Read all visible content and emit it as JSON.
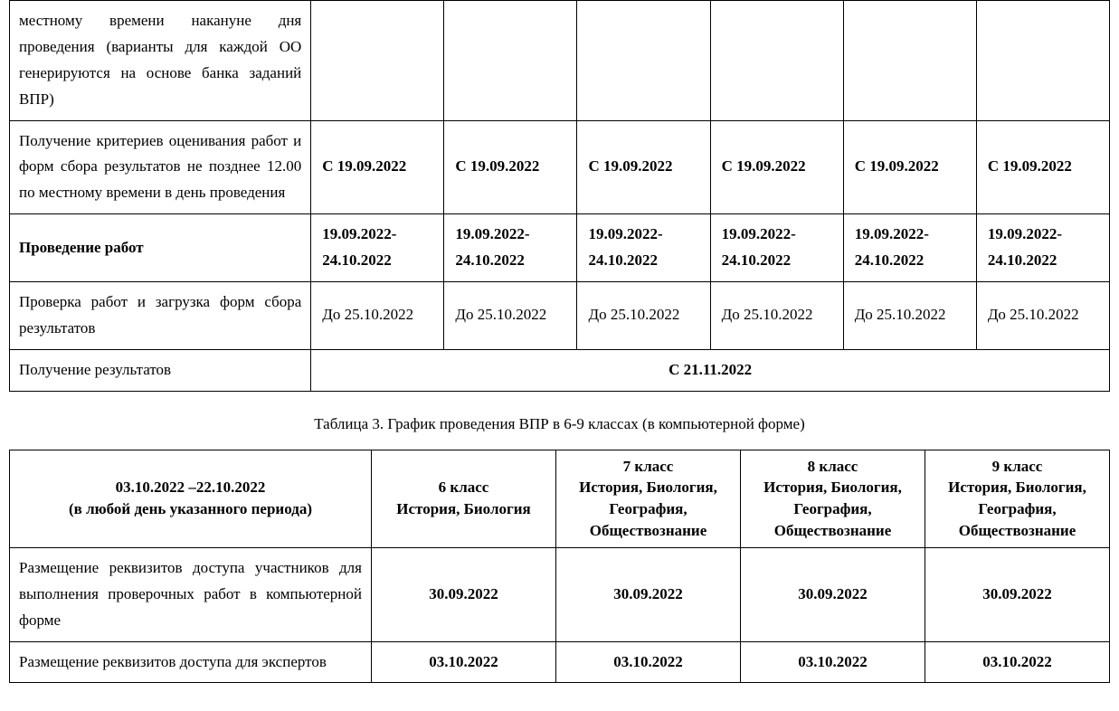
{
  "table1": {
    "cols": 6,
    "rows": [
      {
        "label": "местному времени накануне дня проведения (варианты для каждой ОО генерируются на основе банка заданий ВПР)",
        "label_bold": false,
        "cells": [
          "",
          "",
          "",
          "",
          "",
          ""
        ],
        "cells_bold": false
      },
      {
        "label": "Получение критериев оценивания работ и форм сбора результатов не позднее 12.00 по местному времени в день проведения",
        "label_bold": false,
        "cells": [
          "С 19.09.2022",
          "С 19.09.2022",
          "С 19.09.2022",
          "С 19.09.2022",
          "С 19.09.2022",
          "С 19.09.2022"
        ],
        "cells_bold": true
      },
      {
        "label": "Проведение работ",
        "label_bold": true,
        "cells": [
          "19.09.2022-24.10.2022",
          "19.09.2022-24.10.2022",
          "19.09.2022-24.10.2022",
          "19.09.2022-24.10.2022",
          "19.09.2022-24.10.2022",
          "19.09.2022-24.10.2022"
        ],
        "cells_bold": true
      },
      {
        "label": "Проверка работ и загрузка форм сбора результатов",
        "label_bold": false,
        "cells": [
          "До 25.10.2022",
          "До 25.10.2022",
          "До 25.10.2022",
          "До 25.10.2022",
          "До 25.10.2022",
          "До 25.10.2022"
        ],
        "cells_bold": false
      },
      {
        "label": "Получение результатов",
        "label_bold": false,
        "merged": true,
        "merged_value": "С 21.11.2022",
        "merged_bold": true
      }
    ]
  },
  "caption": "Таблица 3. График проведения ВПР в 6-9 классах (в компьютерной форме)",
  "table2": {
    "headers": [
      "03.10.2022 –22.10.2022\n(в любой день указанного периода)",
      "6 класс\nИстория, Биология",
      "7 класс\nИстория, Биология, География, Обществознание",
      "8 класс\nИстория, Биология, География, Обществознание",
      "9 класс\nИстория, Биология, География, Обществознание"
    ],
    "rows": [
      {
        "label": "Размещение реквизитов доступа участников для выполнения проверочных работ в компьютерной форме",
        "cells": [
          "30.09.2022",
          "30.09.2022",
          "30.09.2022",
          "30.09.2022"
        ]
      },
      {
        "label": "Размещение реквизитов доступа для экспертов",
        "cells": [
          "03.10.2022",
          "03.10.2022",
          "03.10.2022",
          "03.10.2022"
        ]
      }
    ]
  }
}
